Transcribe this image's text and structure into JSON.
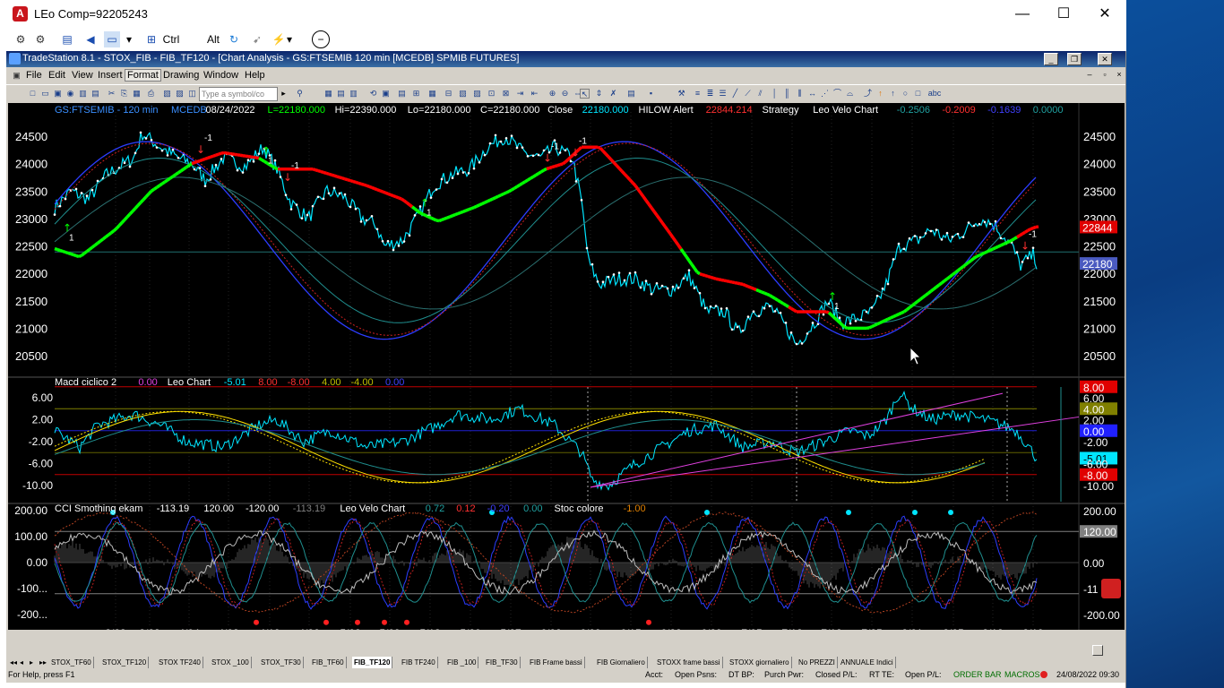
{
  "window": {
    "title": "LEo Comp=92205243",
    "app_icon_letter": "A",
    "minimize": "—",
    "maximize": "☐",
    "close": "✕"
  },
  "top_toolbar": {
    "ctrl_label": "Ctrl",
    "alt_label": "Alt"
  },
  "ts_title": "TradeStation 8.1 - STOX_FIB - FIB_TF120 - [Chart Analysis - GS:FTSEMIB  120 min  [MCEDB] SPMIB FUTURES]",
  "menu": [
    "File",
    "Edit",
    "View",
    "Insert",
    "Format",
    "Drawing",
    "Window",
    "Help"
  ],
  "symbol_input_placeholder": "Type a symbol/co",
  "price_header": {
    "symbol": "GS:FTSEMIB - 120 min",
    "source": "MCEDB",
    "date": "08/24/2022",
    "low_label": "L=22180.000",
    "hi": "Hi=22390.000",
    "lo": "Lo=22180.000",
    "close": "C=22180.000",
    "close_word": "Close",
    "close_value": "22180.000",
    "hilow_alert": "HILOW Alert",
    "hilow_value": "22844.214",
    "strategy": "Strategy",
    "leo_velo": "Leo Velo Chart",
    "v1": "-0.2506",
    "v2": "-0.2009",
    "v3": "-0.1639",
    "v4": "0.0000"
  },
  "macd_header": {
    "name": "Macd ciclico 2",
    "v0": "0.00",
    "leo": "Leo Chart",
    "v1": "-5.01",
    "v2": "8.00",
    "v3": "-8.00",
    "v4": "4.00",
    "v5": "-4.00",
    "v6": "0.00"
  },
  "cci_header": {
    "name": "CCI Smothing ekam",
    "v1": "-113.19",
    "v2": "120.00",
    "v3": "-120.00",
    "v4": "-113.19",
    "leo": "Leo Velo Chart",
    "v5": "0.72",
    "v6": "0.12",
    "v7": "-0.20",
    "v8": "0.00",
    "stoc": "Stoc colore",
    "v9": "-1.00"
  },
  "price_axis": [
    "24500",
    "24000",
    "23500",
    "23000",
    "22500",
    "22000",
    "21500",
    "21000",
    "20500"
  ],
  "price_badges": {
    "hilow": "22844",
    "close": "22180"
  },
  "macd_axis": [
    "6.00",
    "2.00",
    "-2.00",
    "-6.00",
    "-10.00"
  ],
  "macd_right_axis": [
    "8.00",
    "6.00",
    "4.00",
    "2.00",
    "0.00",
    "-2.00",
    "-5.01",
    "-6.00",
    "-8.00",
    "-10.00"
  ],
  "cci_axis": [
    "200.00",
    "100.00",
    "0.00",
    "-100...",
    "-200..."
  ],
  "cci_right_axis": [
    "200.00",
    "120.00",
    "0.00",
    "-11",
    "-200.00"
  ],
  "dates": [
    "3/23",
    "3/28",
    "4/04",
    "4/08",
    "4/19",
    "4/26",
    "5/02",
    "5/09",
    "5/13",
    "5/20",
    "5/27",
    "6/02",
    "6/09",
    "6/15",
    "6/22",
    "6/29",
    "7/05",
    "7/12",
    "7/18",
    "7/25",
    "8/01",
    "8/05",
    "8/12",
    "8/19"
  ],
  "signals": [
    "1",
    "-1",
    "1",
    "-1",
    "1",
    "-1",
    "1",
    "-1",
    "1",
    "-1"
  ],
  "tabs": [
    "STOX_TF60",
    "STOX_TF120",
    "STOX TF240",
    "STOX _100",
    "STOX_TF30",
    "FIB_TF60",
    "FIB_TF120",
    "FIB TF240",
    "FIB _100",
    "FIB_TF30",
    "FIB Frame bassi",
    "FIB Giornaliero",
    "STOXX frame bassi",
    "STOXX giornaliero",
    "No PREZZI",
    "ANNUALE Indici"
  ],
  "active_tab": "FIB_TF120",
  "status": {
    "help": "For Help, press F1",
    "acct": "Acct:",
    "open_psns": "Open Psns:",
    "dt_bp": "DT BP:",
    "purch_pwr": "Purch Pwr:",
    "closed_pl": "Closed P/L:",
    "rt_te": "RT TE:",
    "open_pl": "Open P/L:",
    "order_bar": "ORDER BAR",
    "macros": "MACROS",
    "datetime": "24/08/2022 09:30"
  },
  "colors": {
    "bg": "#000000",
    "price_line": "#00e5ff",
    "trend_up": "#00ff00",
    "trend_down": "#ff0000",
    "blue": "#2c3cff",
    "teal": "#1f8f8f",
    "yellow": "#ffe000",
    "magenta": "#e040e0",
    "axis_text": "#ffffff",
    "header_blue": "#3a8fff"
  }
}
